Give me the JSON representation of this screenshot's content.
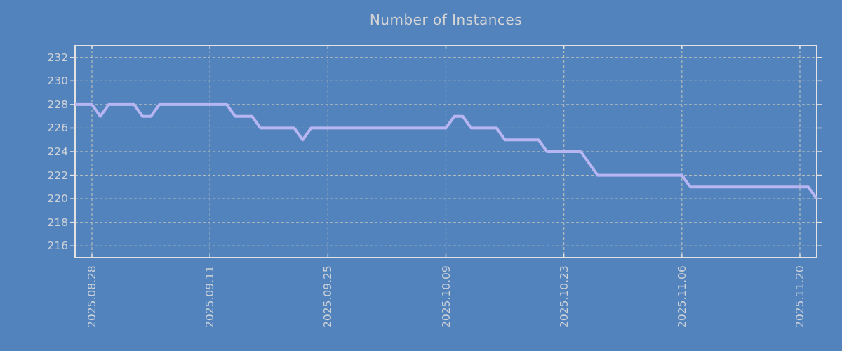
{
  "page": {
    "background": "#5283bd"
  },
  "chart_data": {
    "type": "line",
    "title": "Number of Instances",
    "xlabel": "",
    "ylabel": "",
    "ylim": [
      215,
      233
    ],
    "yticks": [
      216,
      218,
      220,
      222,
      224,
      226,
      228,
      230,
      232
    ],
    "xtick_labels": [
      "2025.08.28",
      "2025.09.11",
      "2025.09.25",
      "2025.10.09",
      "2025.10.23",
      "2025.11.06",
      "2025.11.20"
    ],
    "grid": "dashed",
    "legend_position": "none",
    "colors": {
      "background": "#5283bd",
      "line": "#b7b6f2",
      "grid": "#c3c6bc",
      "axis_border": "#e2e2e2",
      "tick_text": "#ced2d8",
      "title_text": "#d5d5d5"
    },
    "series": [
      {
        "name": "Number of Instances",
        "dates": [
          "2025.08.26",
          "2025.08.27",
          "2025.08.28",
          "2025.08.29",
          "2025.08.30",
          "2025.08.31",
          "2025.09.01",
          "2025.09.02",
          "2025.09.03",
          "2025.09.04",
          "2025.09.05",
          "2025.09.06",
          "2025.09.07",
          "2025.09.08",
          "2025.09.09",
          "2025.09.10",
          "2025.09.11",
          "2025.09.12",
          "2025.09.13",
          "2025.09.14",
          "2025.09.15",
          "2025.09.16",
          "2025.09.17",
          "2025.09.18",
          "2025.09.19",
          "2025.09.20",
          "2025.09.21",
          "2025.09.22",
          "2025.09.23",
          "2025.09.24",
          "2025.09.25",
          "2025.09.26",
          "2025.09.27",
          "2025.09.28",
          "2025.09.29",
          "2025.09.30",
          "2025.10.01",
          "2025.10.02",
          "2025.10.03",
          "2025.10.04",
          "2025.10.05",
          "2025.10.06",
          "2025.10.07",
          "2025.10.08",
          "2025.10.09",
          "2025.10.10",
          "2025.10.11",
          "2025.10.12",
          "2025.10.13",
          "2025.10.14",
          "2025.10.15",
          "2025.10.16",
          "2025.10.17",
          "2025.10.18",
          "2025.10.19",
          "2025.10.20",
          "2025.10.21",
          "2025.10.22",
          "2025.10.23",
          "2025.10.24",
          "2025.10.25",
          "2025.10.26",
          "2025.10.27",
          "2025.10.28",
          "2025.10.29",
          "2025.10.30",
          "2025.10.31",
          "2025.11.01",
          "2025.11.02",
          "2025.11.03",
          "2025.11.04",
          "2025.11.05",
          "2025.11.06",
          "2025.11.07",
          "2025.11.08",
          "2025.11.09",
          "2025.11.10",
          "2025.11.11",
          "2025.11.12",
          "2025.11.13",
          "2025.11.14",
          "2025.11.15",
          "2025.11.16",
          "2025.11.17",
          "2025.11.18",
          "2025.11.19",
          "2025.11.20",
          "2025.11.21",
          "2025.11.22"
        ],
        "values": [
          228,
          228,
          228,
          227,
          228,
          228,
          228,
          228,
          227,
          227,
          228,
          228,
          228,
          228,
          228,
          228,
          228,
          228,
          228,
          227,
          227,
          227,
          226,
          226,
          226,
          226,
          226,
          225,
          226,
          226,
          226,
          226,
          226,
          226,
          226,
          226,
          226,
          226,
          226,
          226,
          226,
          226,
          226,
          226,
          226,
          227,
          227,
          226,
          226,
          226,
          226,
          225,
          225,
          225,
          225,
          225,
          224,
          224,
          224,
          224,
          224,
          223,
          222,
          222,
          222,
          222,
          222,
          222,
          222,
          222,
          222,
          222,
          222,
          221,
          221,
          221,
          221,
          221,
          221,
          221,
          221,
          221,
          221,
          221,
          221,
          221,
          221,
          221,
          220
        ]
      }
    ]
  }
}
